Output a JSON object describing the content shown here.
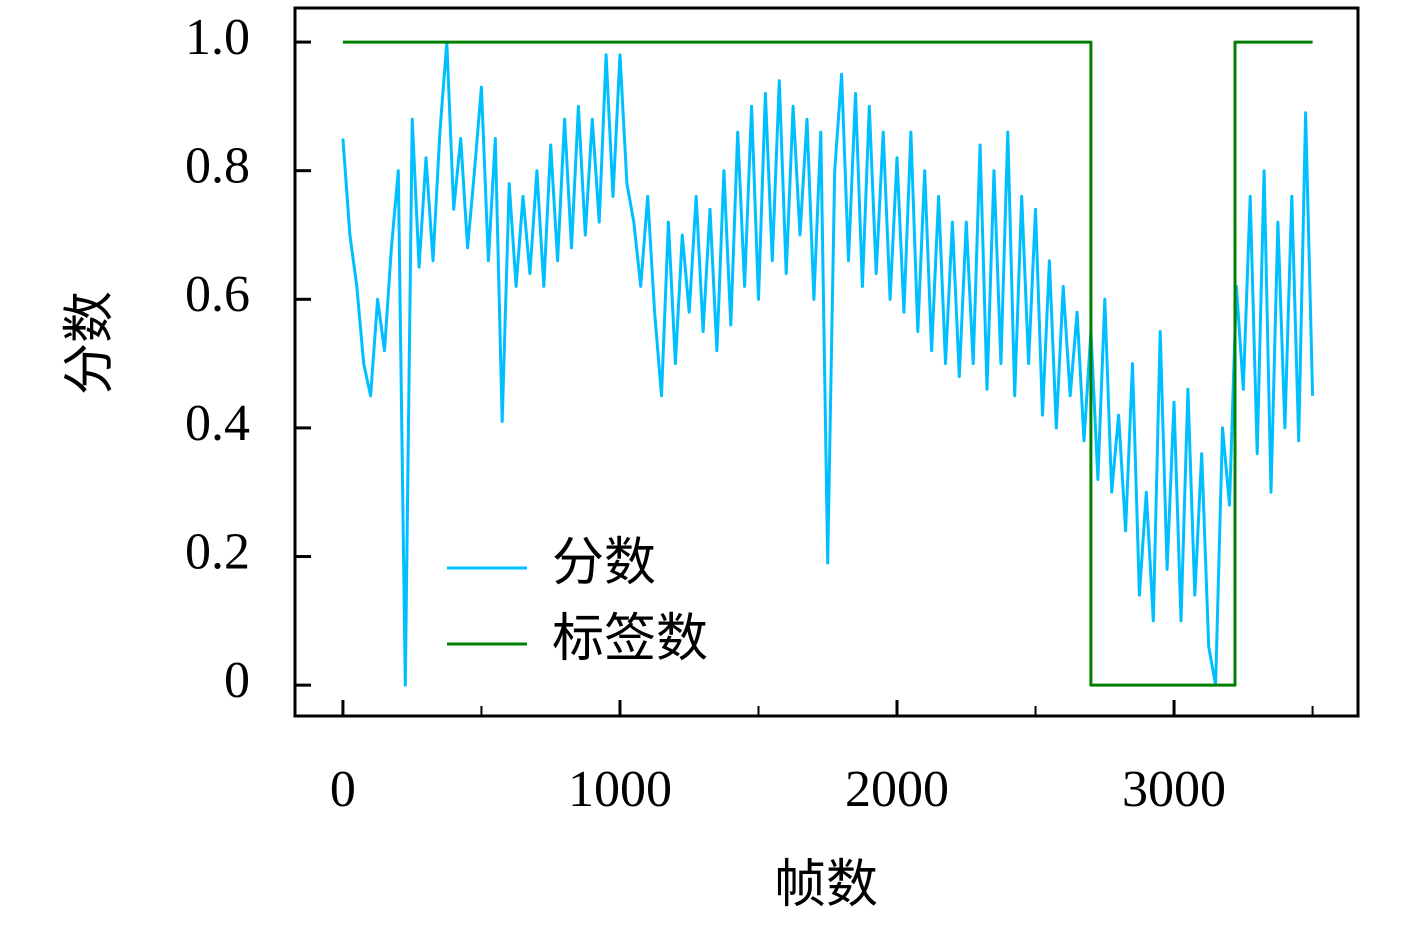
{
  "chart_data": {
    "type": "line",
    "xlabel": "帧数",
    "ylabel": "分数",
    "xlim": [
      -173,
      3664
    ],
    "ylim": [
      -0.048,
      1.053
    ],
    "xticks": [
      0,
      1000,
      2000,
      3000
    ],
    "xminorticks": [
      500,
      1500,
      2500,
      3500
    ],
    "yticks": [
      0,
      0.2,
      0.4,
      0.6,
      0.8,
      {
        "value": 1.0,
        "label": "1.0"
      }
    ],
    "legend": "lower left",
    "series": [
      {
        "name": "分数",
        "color": "#00bfff",
        "x": [
          0,
          25,
          50,
          75,
          100,
          125,
          150,
          175,
          200,
          225,
          250,
          275,
          300,
          325,
          350,
          375,
          400,
          425,
          450,
          475,
          500,
          525,
          550,
          575,
          600,
          625,
          650,
          675,
          700,
          725,
          750,
          775,
          800,
          825,
          850,
          875,
          900,
          925,
          950,
          975,
          1000,
          1025,
          1050,
          1075,
          1100,
          1125,
          1150,
          1175,
          1200,
          1225,
          1250,
          1275,
          1300,
          1325,
          1350,
          1375,
          1400,
          1425,
          1450,
          1475,
          1500,
          1525,
          1550,
          1575,
          1600,
          1625,
          1650,
          1675,
          1700,
          1725,
          1750,
          1775,
          1800,
          1825,
          1850,
          1875,
          1900,
          1925,
          1950,
          1975,
          2000,
          2025,
          2050,
          2075,
          2100,
          2125,
          2150,
          2175,
          2200,
          2225,
          2250,
          2275,
          2300,
          2325,
          2350,
          2375,
          2400,
          2425,
          2450,
          2475,
          2500,
          2525,
          2550,
          2575,
          2600,
          2625,
          2650,
          2675,
          2700,
          2725,
          2750,
          2775,
          2800,
          2825,
          2850,
          2875,
          2900,
          2925,
          2950,
          2975,
          3000,
          3025,
          3050,
          3075,
          3100,
          3125,
          3150,
          3175,
          3200,
          3225,
          3250,
          3275,
          3300,
          3325,
          3350,
          3375,
          3400,
          3425,
          3450,
          3475,
          3500
        ],
        "values": [
          0.85,
          0.7,
          0.62,
          0.5,
          0.45,
          0.6,
          0.52,
          0.68,
          0.8,
          0,
          0.88,
          0.65,
          0.82,
          0.66,
          0.86,
          1.0,
          0.74,
          0.85,
          0.68,
          0.8,
          0.93,
          0.66,
          0.85,
          0.41,
          0.78,
          0.62,
          0.76,
          0.64,
          0.8,
          0.62,
          0.84,
          0.66,
          0.88,
          0.68,
          0.9,
          0.7,
          0.88,
          0.72,
          0.98,
          0.76,
          0.98,
          0.78,
          0.72,
          0.62,
          0.76,
          0.58,
          0.45,
          0.72,
          0.5,
          0.7,
          0.58,
          0.76,
          0.55,
          0.74,
          0.52,
          0.8,
          0.56,
          0.86,
          0.62,
          0.9,
          0.6,
          0.92,
          0.66,
          0.94,
          0.64,
          0.9,
          0.7,
          0.88,
          0.6,
          0.86,
          0.19,
          0.8,
          0.95,
          0.66,
          0.92,
          0.62,
          0.9,
          0.64,
          0.86,
          0.6,
          0.82,
          0.58,
          0.86,
          0.55,
          0.8,
          0.52,
          0.76,
          0.5,
          0.72,
          0.48,
          0.72,
          0.5,
          0.84,
          0.46,
          0.8,
          0.5,
          0.86,
          0.45,
          0.76,
          0.5,
          0.74,
          0.42,
          0.66,
          0.4,
          0.62,
          0.45,
          0.58,
          0.38,
          0.55,
          0.32,
          0.6,
          0.3,
          0.42,
          0.24,
          0.5,
          0.14,
          0.3,
          0.1,
          0.55,
          0.18,
          0.44,
          0.1,
          0.46,
          0.14,
          0.36,
          0.06,
          0,
          0.4,
          0.28,
          0.62,
          0.46,
          0.76,
          0.36,
          0.8,
          0.3,
          0.72,
          0.4,
          0.76,
          0.38,
          0.89,
          0.45
        ]
      },
      {
        "name": "标签数",
        "color": "#008000",
        "x": [
          0,
          2700,
          2700,
          3220,
          3220,
          3500
        ],
        "values": [
          1,
          1,
          0,
          0,
          1,
          1
        ]
      }
    ]
  }
}
